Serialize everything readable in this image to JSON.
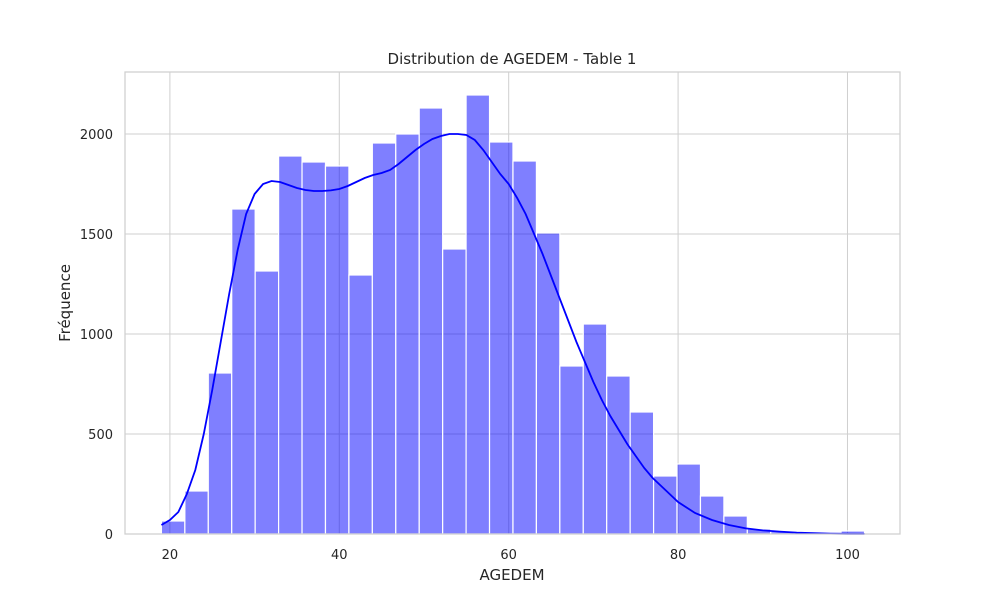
{
  "chart_data": {
    "type": "bar",
    "subtype": "histogram_with_kde",
    "title": "Distribution de AGEDEM - Table 1",
    "xlabel": "AGEDEM",
    "ylabel": "Fréquence",
    "xlim": [
      14.7,
      106.2
    ],
    "ylim": [
      0,
      2310
    ],
    "xticks": [
      20,
      40,
      60,
      80,
      100
    ],
    "yticks": [
      0,
      500,
      1000,
      1500,
      2000
    ],
    "grid": true,
    "bar_color": "#0000ff",
    "bar_alpha": 0.5,
    "line_color": "#0000ff",
    "bins": {
      "start": 19,
      "width": 2.767,
      "counts": [
        65,
        215,
        805,
        1625,
        1315,
        1890,
        1860,
        1840,
        1295,
        1955,
        2000,
        2130,
        1425,
        2195,
        1960,
        1865,
        1505,
        840,
        1050,
        790,
        610,
        290,
        350,
        190,
        90,
        25,
        12,
        5,
        2,
        15
      ]
    },
    "kde": {
      "x": [
        19,
        20,
        21,
        22,
        23,
        24,
        25,
        26,
        27,
        28,
        29,
        30,
        31,
        32,
        33,
        34,
        35,
        36,
        37,
        38,
        39,
        40,
        41,
        42,
        43,
        44,
        45,
        46,
        47,
        48,
        49,
        50,
        51,
        52,
        53,
        54,
        55,
        56,
        57,
        58,
        59,
        60,
        61,
        62,
        63,
        64,
        65,
        66,
        67,
        68,
        69,
        70,
        71,
        72,
        73,
        74,
        75,
        76,
        77,
        78,
        79,
        80,
        82,
        84,
        86,
        88,
        90,
        92,
        94,
        96,
        98,
        100,
        102
      ],
      "y": [
        45,
        70,
        110,
        200,
        320,
        500,
        720,
        960,
        1200,
        1420,
        1600,
        1700,
        1750,
        1765,
        1760,
        1745,
        1730,
        1720,
        1715,
        1715,
        1718,
        1725,
        1740,
        1760,
        1780,
        1795,
        1805,
        1820,
        1850,
        1885,
        1920,
        1950,
        1975,
        1990,
        2000,
        2000,
        1995,
        1970,
        1920,
        1860,
        1800,
        1750,
        1680,
        1600,
        1500,
        1400,
        1290,
        1180,
        1070,
        960,
        860,
        760,
        670,
        590,
        520,
        450,
        390,
        330,
        280,
        240,
        200,
        160,
        105,
        70,
        45,
        28,
        18,
        12,
        7,
        4,
        2,
        1,
        0.5
      ]
    }
  }
}
